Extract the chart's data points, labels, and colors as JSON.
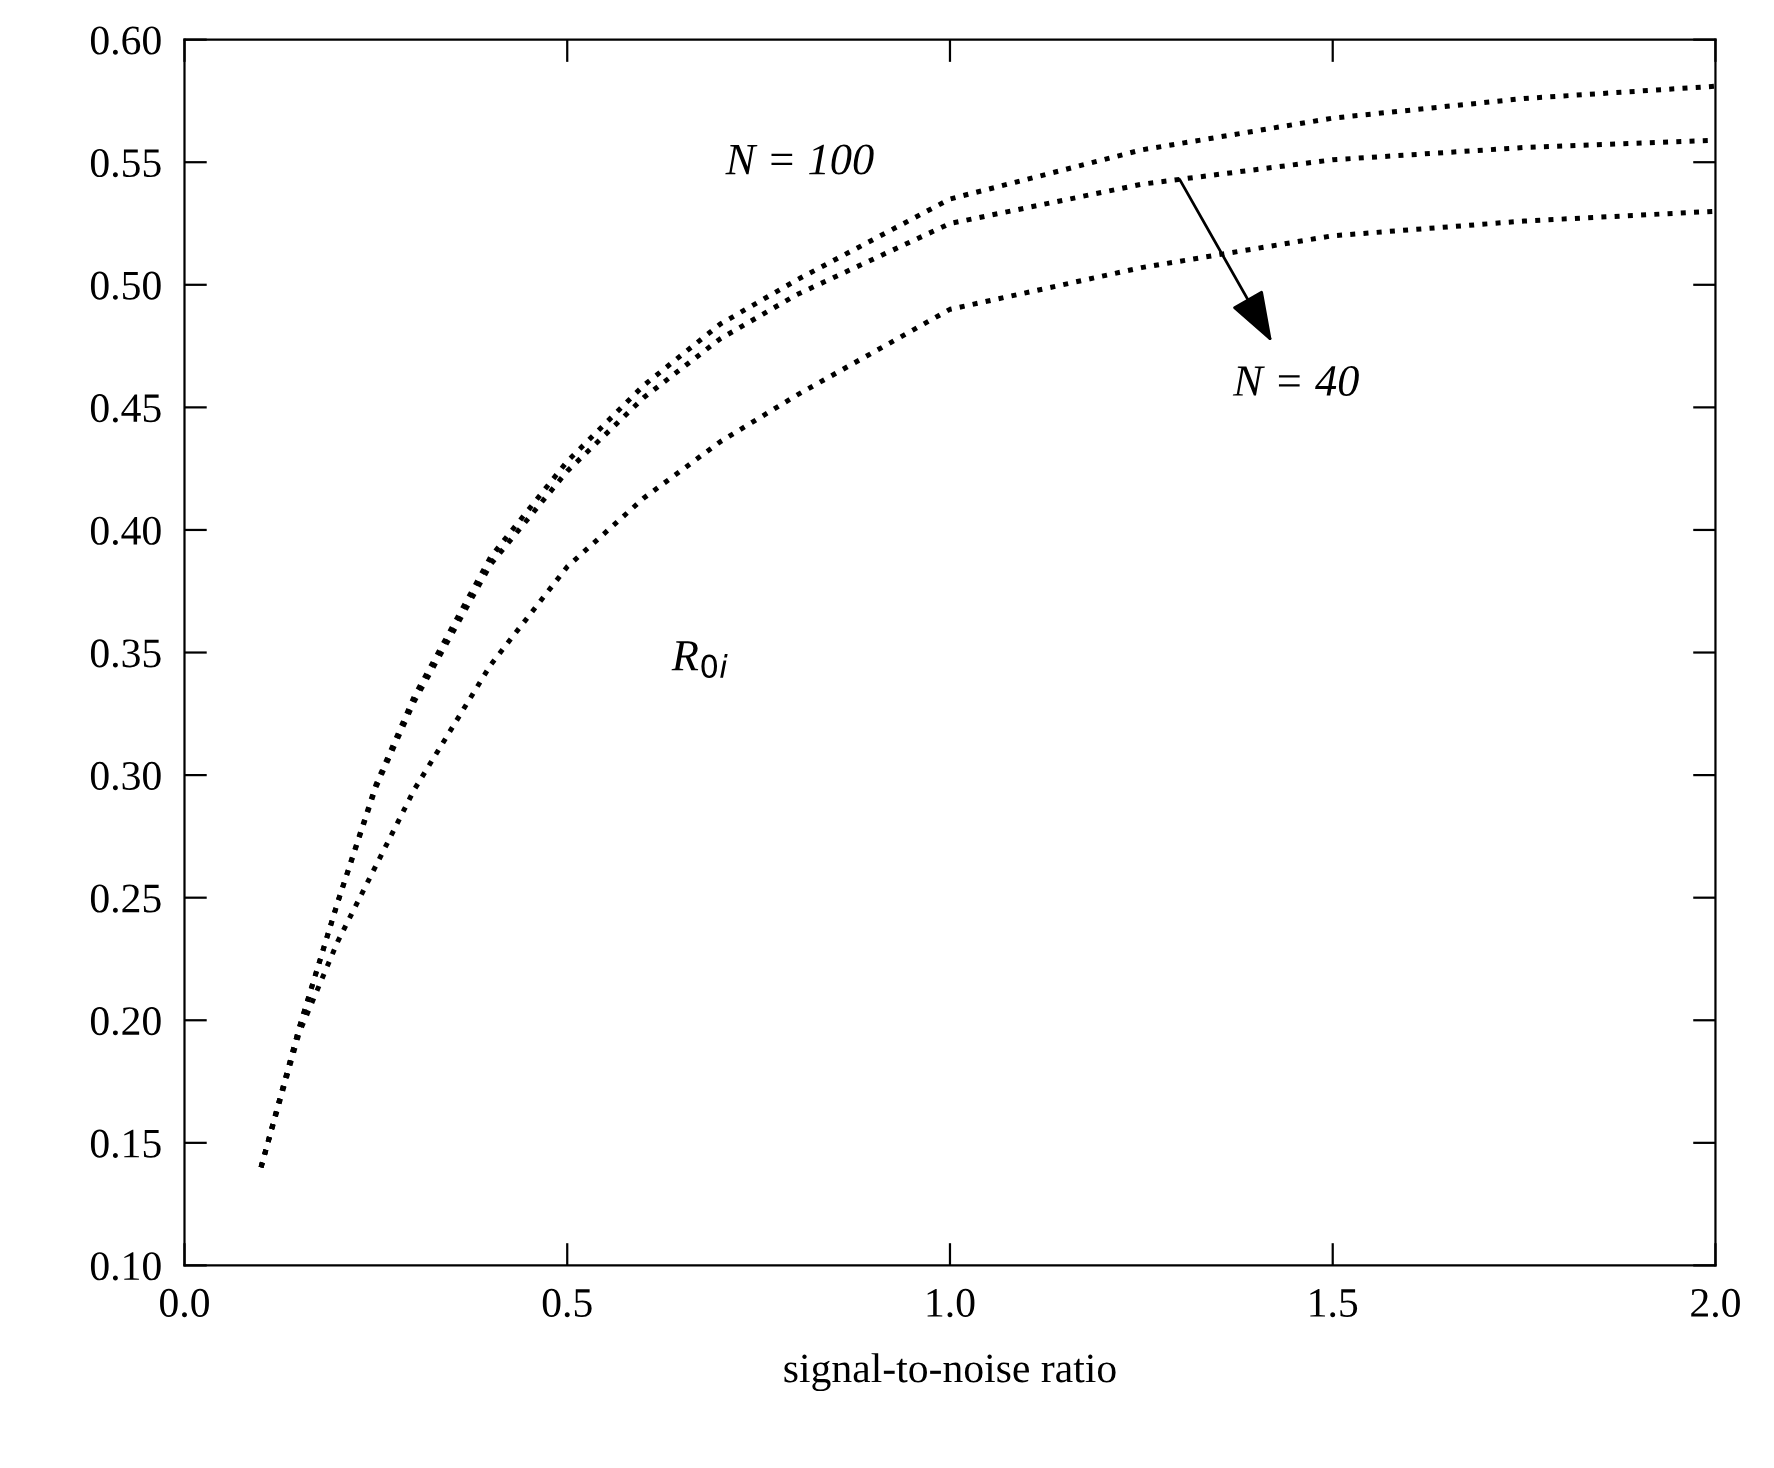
{
  "chart_data": {
    "type": "line",
    "xlabel": "signal-to-noise ratio",
    "x": [
      0.1,
      0.15,
      0.2,
      0.25,
      0.3,
      0.4,
      0.5,
      0.6,
      0.7,
      0.8,
      1.0,
      1.25,
      1.5,
      1.75,
      2.0
    ],
    "series": [
      {
        "color": "#000000",
        "values": [
          0.14,
          0.197,
          0.248,
          0.296,
          0.332,
          0.389,
          0.428,
          0.459,
          0.484,
          0.502,
          0.535,
          0.555,
          0.568,
          0.576,
          0.581
        ]
      },
      {
        "color": "#000000",
        "values": [
          0.14,
          0.197,
          0.248,
          0.295,
          0.33,
          0.386,
          0.424,
          0.454,
          0.478,
          0.496,
          0.525,
          0.541,
          0.551,
          0.556,
          0.559
        ]
      },
      {
        "color": "#000000",
        "values": [
          0.14,
          0.195,
          0.232,
          0.263,
          0.294,
          0.345,
          0.385,
          0.413,
          0.436,
          0.455,
          0.49,
          0.507,
          0.52,
          0.526,
          0.53
        ]
      }
    ],
    "annotations": [
      "N = 100",
      {
        "text": "N = 40",
        "x": 1.3,
        "y": 0.543
      },
      "R$_{0i}$"
    ],
    "xlim": [
      0.0,
      2.0
    ],
    "ylim": [
      0.1,
      0.6
    ],
    "xticks": [
      {
        "value": 0.0,
        "label": "0.0"
      },
      {
        "value": 0.5,
        "label": "0.5"
      },
      {
        "value": 1.0,
        "label": "1.0"
      },
      {
        "value": 1.5,
        "label": "1.5"
      },
      {
        "value": 2.0,
        "label": "2.0"
      }
    ],
    "yticks": [
      {
        "value": 0.1,
        "label": "0.10"
      },
      0.15,
      {
        "value": 0.2,
        "label": "0.20"
      },
      0.25,
      {
        "value": 0.3,
        "label": "0.30"
      },
      0.35,
      {
        "value": 0.4,
        "label": "0.40"
      },
      0.45,
      {
        "value": 0.5,
        "label": "0.50"
      },
      0.55,
      {
        "value": 0.6,
        "label": "0.60"
      }
    ],
    "grid": false,
    "legend": false,
    "marker": "none",
    "line_style": "dotted"
  }
}
